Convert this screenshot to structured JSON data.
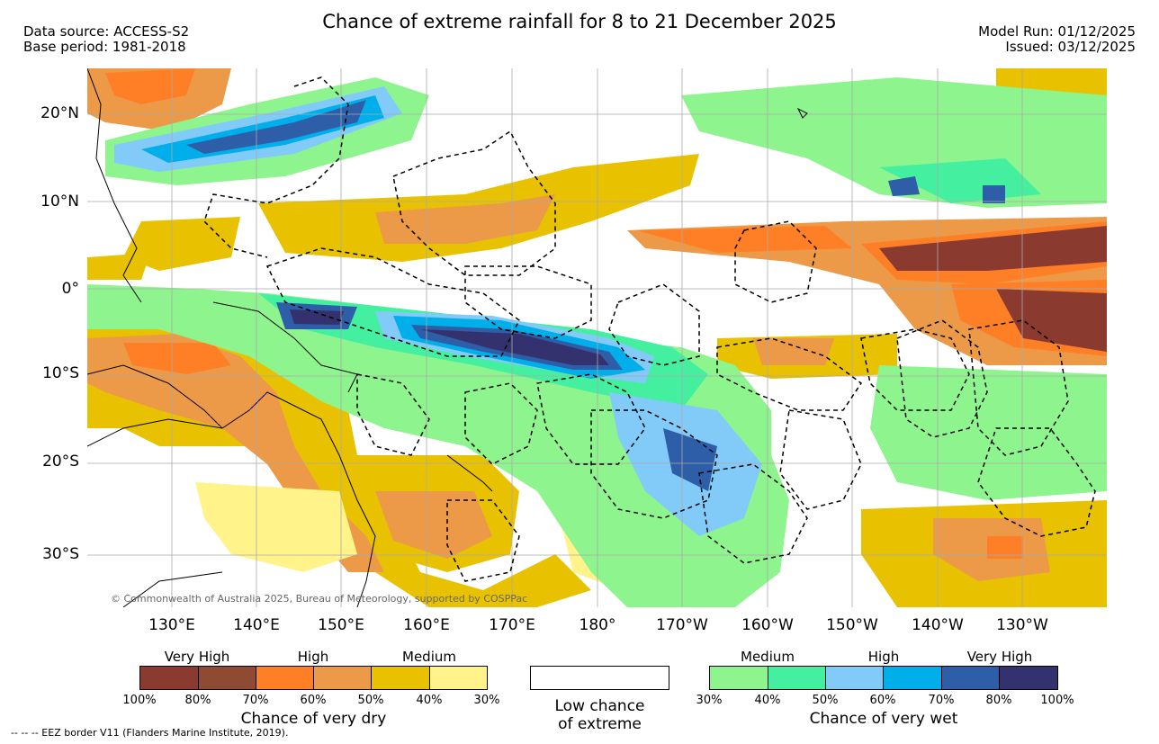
{
  "title": "Chance of extreme rainfall for 8 to 21 December 2025",
  "meta_left": {
    "line1": "Data source: ACCESS-S2",
    "line2": "Base period: 1981-2018"
  },
  "meta_right": {
    "line1": "Model Run: 01/12/2025",
    "line2": "Issued: 03/12/2025"
  },
  "copyright": "© Commonwealth of Australia 2025, Bureau of Meteorology, supported by COSPPac",
  "lat_labels": [
    "20°N",
    "10°N",
    "0°",
    "10°S",
    "20°S",
    "30°S"
  ],
  "lon_labels": [
    "130°E",
    "140°E",
    "150°E",
    "160°E",
    "170°E",
    "180°",
    "170°W",
    "160°W",
    "150°W",
    "140°W",
    "130°W"
  ],
  "legend": {
    "dry": {
      "categories": [
        "Very High",
        "High",
        "Medium"
      ],
      "ticks": [
        "100%",
        "80%",
        "70%",
        "60%",
        "50%",
        "40%",
        "30%"
      ],
      "colors": [
        "#8b3a2f",
        "#8f4a33",
        "#ff7f27",
        "#ec9a48",
        "#e8c200",
        "#fff38a"
      ],
      "caption": "Chance of very dry"
    },
    "low": {
      "line1": "Low chance",
      "line2": "of extreme",
      "color": "#ffffff"
    },
    "wet": {
      "categories": [
        "Medium",
        "High",
        "Very High"
      ],
      "ticks": [
        "30%",
        "40%",
        "50%",
        "60%",
        "70%",
        "80%",
        "100%"
      ],
      "colors": [
        "#8ef58e",
        "#44f0a0",
        "#82cbf8",
        "#00aeea",
        "#2e5ea8",
        "#33326e"
      ],
      "caption": "Chance of very wet"
    }
  },
  "footer": "--  --  -- EEZ border V11 (Flanders Marine Institute, 2019)."
}
